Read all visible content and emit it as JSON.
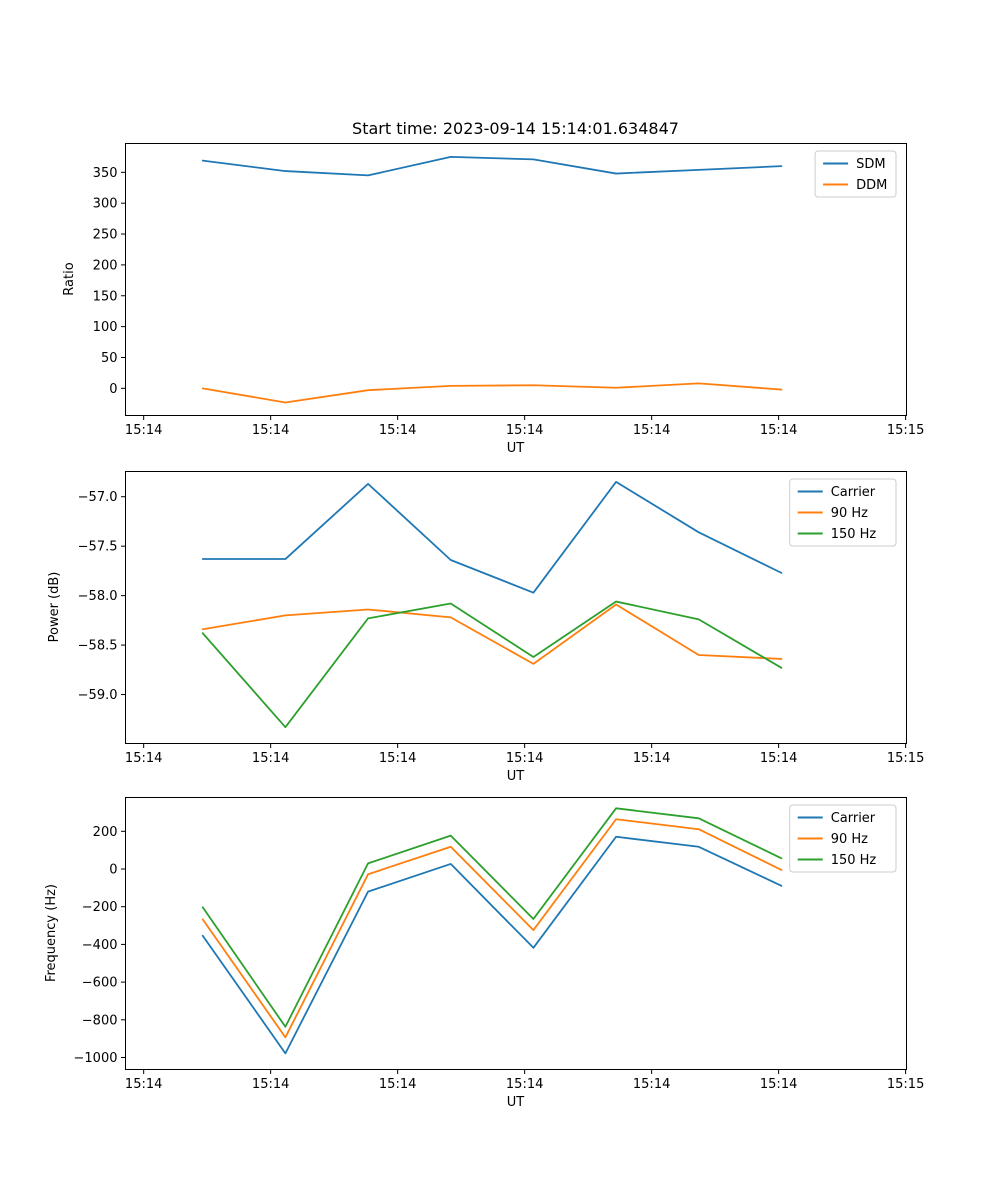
{
  "title": "Start time: 2023-09-14 15:14:01.634847",
  "colors": {
    "blue": "#1f77b4",
    "orange": "#ff7f0e",
    "green": "#2ca02c"
  },
  "x_axis": {
    "label": "UT",
    "xlim": [
      -1.47,
      60.03
    ],
    "tick_values": [
      0,
      10,
      20,
      30,
      40,
      50,
      60
    ],
    "tick_labels": [
      "15:14",
      "15:14",
      "15:14",
      "15:14",
      "15:14",
      "15:14",
      "15:15"
    ]
  },
  "sample_times_s": [
    4.65,
    11.16,
    17.67,
    24.18,
    30.69,
    37.2,
    43.71,
    50.22
  ],
  "chart_data": [
    {
      "type": "line",
      "title": "Start time: 2023-09-14 15:14:01.634847",
      "xlabel": "UT",
      "ylabel": "Ratio",
      "ylim": [
        -43.2,
        397.5
      ],
      "ytick_values": [
        0,
        50,
        100,
        150,
        200,
        250,
        300,
        350
      ],
      "ytick_labels": [
        "0",
        "50",
        "100",
        "150",
        "200",
        "250",
        "300",
        "350"
      ],
      "legend_position": "upper right",
      "x": [
        4.65,
        11.16,
        17.67,
        24.18,
        30.69,
        37.2,
        43.71,
        50.22
      ],
      "series": [
        {
          "name": "SDM",
          "color": "#1f77b4",
          "values": [
            369,
            352,
            345,
            375,
            371,
            348,
            354,
            360
          ]
        },
        {
          "name": "DDM",
          "color": "#ff7f0e",
          "values": [
            0,
            -23,
            -3,
            4,
            5,
            1,
            8,
            -2
          ]
        }
      ]
    },
    {
      "type": "line",
      "title": "",
      "xlabel": "UT",
      "ylabel": "Power (dB)",
      "ylim": [
        -59.49,
        -56.74
      ],
      "ytick_values": [
        -59.0,
        -58.5,
        -58.0,
        -57.5,
        -57.0
      ],
      "ytick_labels": [
        "−59.0",
        "−58.5",
        "−58.0",
        "−57.5",
        "−57.0"
      ],
      "legend_position": "upper right",
      "x": [
        4.65,
        11.16,
        17.67,
        24.18,
        30.69,
        37.2,
        43.71,
        50.22
      ],
      "series": [
        {
          "name": "Carrier",
          "color": "#1f77b4",
          "values": [
            -57.63,
            -57.63,
            -56.87,
            -57.64,
            -57.97,
            -56.85,
            -57.36,
            -57.77
          ]
        },
        {
          "name": "90 Hz",
          "color": "#ff7f0e",
          "values": [
            -58.34,
            -58.2,
            -58.14,
            -58.22,
            -58.69,
            -58.09,
            -58.6,
            -58.64
          ]
        },
        {
          "name": "150 Hz",
          "color": "#2ca02c",
          "values": [
            -58.38,
            -59.33,
            -58.23,
            -58.08,
            -58.62,
            -58.06,
            -58.24,
            -58.73
          ]
        }
      ]
    },
    {
      "type": "line",
      "title": "",
      "xlabel": "UT",
      "ylabel": "Frequency (Hz)",
      "ylim": [
        -1061,
        382
      ],
      "ytick_values": [
        -1000,
        -800,
        -600,
        -400,
        -200,
        0,
        200
      ],
      "ytick_labels": [
        "−1000",
        "−800",
        "−600",
        "−400",
        "−200",
        "0",
        "200"
      ],
      "legend_position": "upper right",
      "x": [
        4.65,
        11.16,
        17.67,
        24.18,
        30.69,
        37.2,
        43.71,
        50.22
      ],
      "series": [
        {
          "name": "Carrier",
          "color": "#1f77b4",
          "values": [
            -354,
            -978,
            -120,
            27,
            -418,
            171,
            118,
            -89
          ]
        },
        {
          "name": "90 Hz",
          "color": "#ff7f0e",
          "values": [
            -267,
            -893,
            -28,
            118,
            -324,
            264,
            211,
            -5
          ]
        },
        {
          "name": "150 Hz",
          "color": "#2ca02c",
          "values": [
            -203,
            -837,
            30,
            177,
            -265,
            322,
            269,
            57
          ]
        }
      ]
    }
  ]
}
